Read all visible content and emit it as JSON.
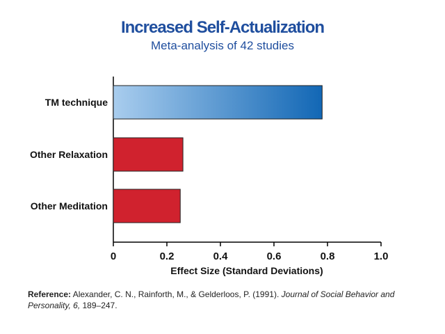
{
  "header": {
    "title": "Increased Self-Actualization",
    "subtitle": "Meta-analysis of 42 studies"
  },
  "chart_data": {
    "type": "bar",
    "orientation": "horizontal",
    "title": "Increased Self-Actualization",
    "subtitle": "Meta-analysis of 42 studies",
    "categories": [
      "TM technique",
      "Other Relaxation",
      "Other Meditation"
    ],
    "values": [
      0.78,
      0.26,
      0.25
    ],
    "xlabel": "Effect Size (Standard Deviations)",
    "ylabel": "",
    "xlim": [
      0,
      1.0
    ],
    "xticks": [
      "0",
      "0.2",
      "0.4",
      "0.6",
      "0.8",
      "1.0"
    ],
    "grid": false,
    "colors": [
      "#1a6fb8",
      "#d0222e",
      "#d0222e"
    ]
  },
  "reference": {
    "label": "Reference:",
    "authors": "Alexander, C. N., Rainforth, M., & Gelderloos, P. (1991).",
    "journal": "Journal of Social Behavior and Personality, 6,",
    "pages": "189–247."
  }
}
